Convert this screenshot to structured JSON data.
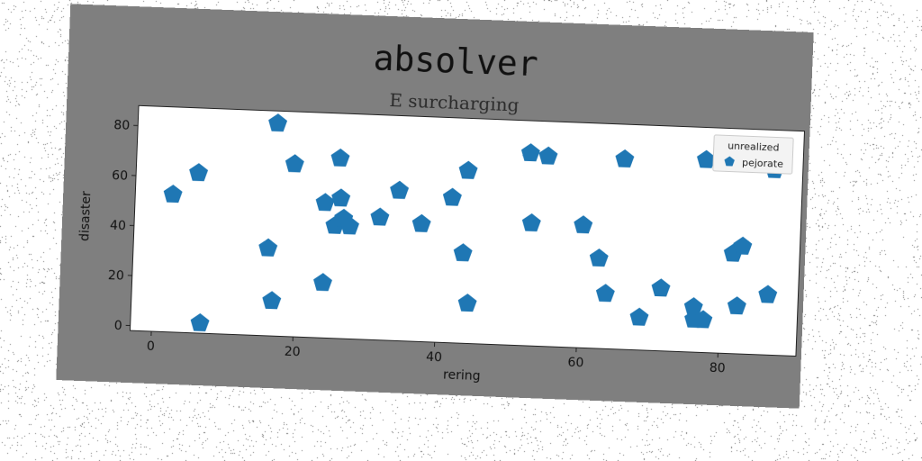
{
  "chart_data": {
    "type": "scatter",
    "title": "absolver",
    "subtitle": "E surcharging",
    "xlabel": "rering",
    "ylabel": "disaster",
    "xlim": [
      -3,
      91
    ],
    "ylim": [
      -2,
      88
    ],
    "x_ticks": [
      0,
      20,
      40,
      60,
      80
    ],
    "y_ticks": [
      0,
      20,
      40,
      60,
      80
    ],
    "grid": false,
    "legend": {
      "title": "unrealized",
      "placement": "upper-right",
      "entries": [
        "pejorate"
      ]
    },
    "series": [
      {
        "name": "pejorate",
        "color": "#1f77b4",
        "marker": "pentagon",
        "points": [
          [
            2.3,
            53
          ],
          [
            5.8,
            62
          ],
          [
            6.8,
            2
          ],
          [
            16,
            33
          ],
          [
            16.7,
            83
          ],
          [
            16.8,
            12
          ],
          [
            19.3,
            67
          ],
          [
            23.8,
            52
          ],
          [
            23.9,
            20
          ],
          [
            25.3,
            43
          ],
          [
            25.7,
            70
          ],
          [
            26,
            54
          ],
          [
            26.5,
            46
          ],
          [
            27.4,
            43
          ],
          [
            31.6,
            47
          ],
          [
            34.2,
            58
          ],
          [
            37.5,
            45
          ],
          [
            41.7,
            56
          ],
          [
            43.5,
            34
          ],
          [
            43.8,
            67
          ],
          [
            44.4,
            14
          ],
          [
            52.5,
            75
          ],
          [
            53,
            47
          ],
          [
            55,
            74
          ],
          [
            60.3,
            47
          ],
          [
            62.7,
            34
          ],
          [
            63.8,
            20
          ],
          [
            65.8,
            74
          ],
          [
            68.7,
            11
          ],
          [
            71.6,
            23
          ],
          [
            76.3,
            16
          ],
          [
            76.4,
            11
          ],
          [
            77.7,
            11
          ],
          [
            77.3,
            75
          ],
          [
            81.6,
            38
          ],
          [
            82.4,
            17
          ],
          [
            82.9,
            41
          ],
          [
            86.7,
            22
          ],
          [
            87,
            72
          ]
        ]
      }
    ]
  }
}
